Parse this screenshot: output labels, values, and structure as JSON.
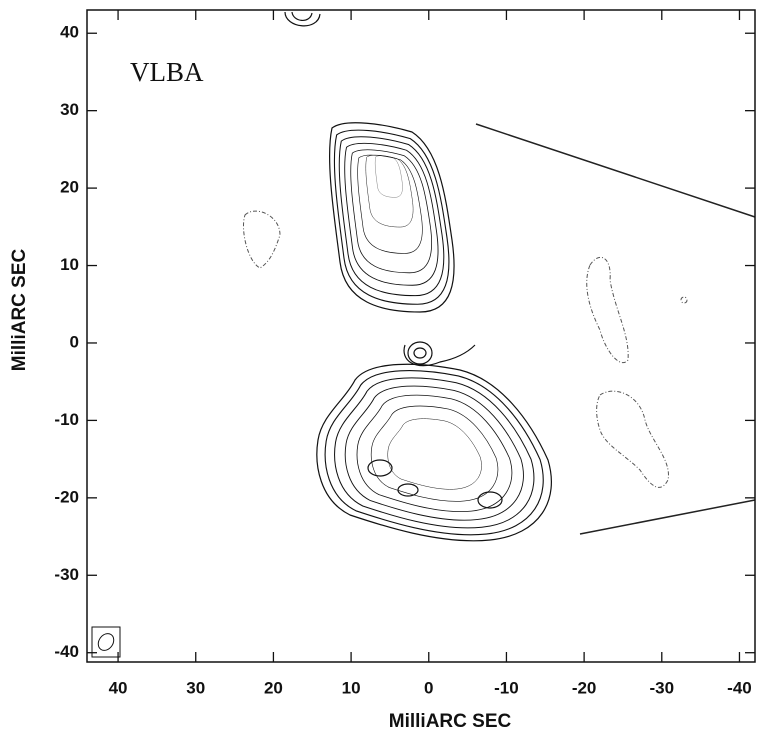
{
  "chart_data": {
    "type": "contour",
    "title": "VLBA",
    "xlabel": "MilliARC SEC",
    "ylabel": "MilliARC SEC",
    "xlim": [
      44,
      -42
    ],
    "ylim": [
      -41.2,
      43
    ],
    "xticks": [
      40,
      30,
      20,
      10,
      0,
      -10,
      -20,
      -30,
      -40
    ],
    "yticks": [
      40,
      30,
      20,
      10,
      0,
      -10,
      -20,
      -30,
      -40
    ]
  }
}
